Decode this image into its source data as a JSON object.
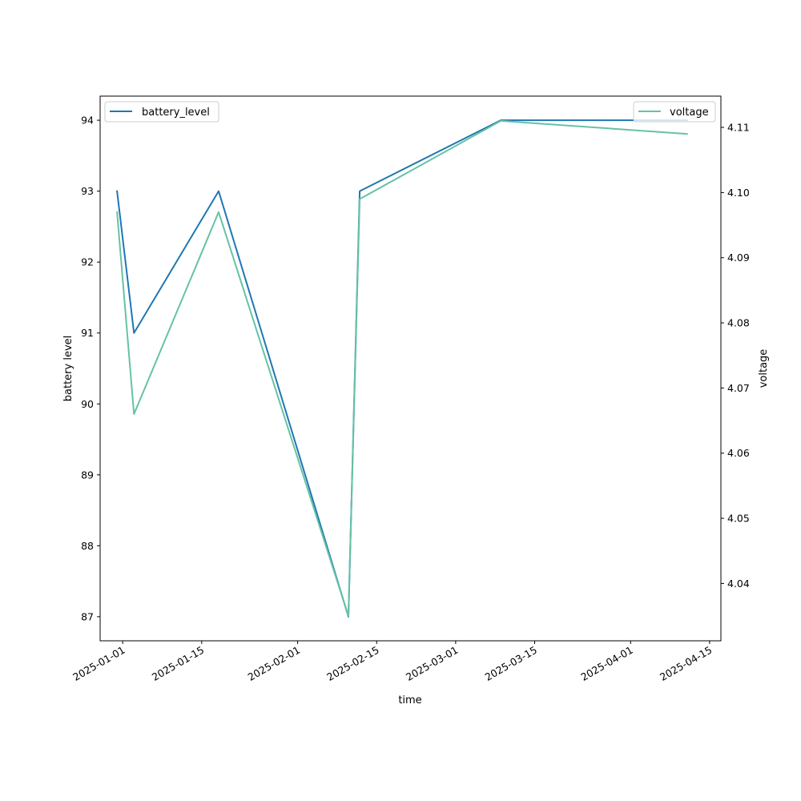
{
  "chart_data": {
    "type": "line",
    "xlabel": "time",
    "ylabel": "battery level",
    "y2label": "voltage",
    "xlim": [
      "2024-12-28",
      "2025-04-17"
    ],
    "ylim": [
      86.66,
      94.34
    ],
    "y2lim": [
      4.0312,
      4.1148
    ],
    "xticks": [
      "2025-01-01",
      "2025-01-15",
      "2025-02-01",
      "2025-02-15",
      "2025-03-01",
      "2025-03-15",
      "2025-04-01",
      "2025-04-15"
    ],
    "yticks": [
      87,
      88,
      89,
      90,
      91,
      92,
      93,
      94
    ],
    "y2ticks": [
      "4.04",
      "4.05",
      "4.06",
      "4.07",
      "4.08",
      "4.09",
      "4.10",
      "4.11"
    ],
    "legend_left": "top-left",
    "legend_right": "top-right",
    "grid": false,
    "series": [
      {
        "name": "battery_level",
        "axis": "left",
        "color": "#1f77b4",
        "x": [
          "2024-12-31",
          "2025-01-03",
          "2025-01-18",
          "2025-02-10",
          "2025-02-12",
          "2025-03-09",
          "2025-04-11"
        ],
        "values": [
          93,
          91,
          93,
          87,
          93,
          94,
          94
        ]
      },
      {
        "name": "voltage",
        "axis": "right",
        "color": "#66c2a5",
        "x": [
          "2024-12-31",
          "2025-01-03",
          "2025-01-18",
          "2025-02-10",
          "2025-02-12",
          "2025-03-09",
          "2025-04-11"
        ],
        "values": [
          4.097,
          4.066,
          4.097,
          4.035,
          4.099,
          4.111,
          4.109
        ]
      }
    ]
  }
}
